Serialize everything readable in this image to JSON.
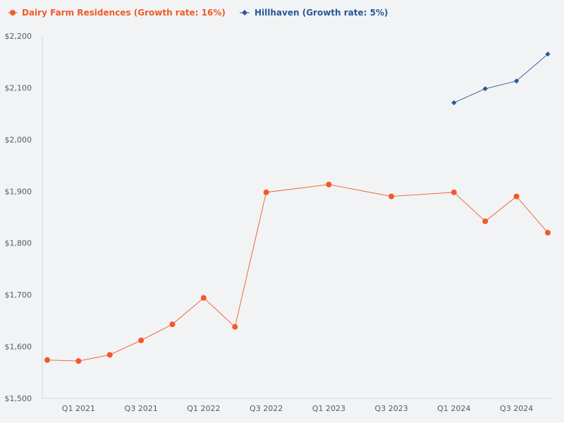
{
  "chart_data": {
    "type": "line",
    "title": "",
    "xlabel": "",
    "ylabel": "",
    "ylim": [
      1500,
      2200
    ],
    "y_ticks": [
      1500,
      1600,
      1700,
      1800,
      1900,
      2000,
      2100,
      2200
    ],
    "y_tick_labels": [
      "$1,500",
      "$1,600",
      "$1,700",
      "$1,800",
      "$1,900",
      "$2,000",
      "$2,100",
      "$2,200"
    ],
    "x_tick_labels": [
      "Q1 2021",
      "Q3 2021",
      "Q1 2022",
      "Q3 2022",
      "Q1 2023",
      "Q3 2023",
      "Q1 2024",
      "Q3 2024"
    ],
    "x_tick_index": [
      1,
      3,
      5,
      7,
      9,
      11,
      13,
      15
    ],
    "x_count": 17,
    "grid": false,
    "legend_position": "top-left",
    "series": [
      {
        "name": "Dairy Farm Residences (Growth rate: 16%)",
        "color": "#f05a28",
        "marker": "circle",
        "points": [
          {
            "x": 0,
            "y": 1574
          },
          {
            "x": 1,
            "y": 1572
          },
          {
            "x": 2,
            "y": 1584
          },
          {
            "x": 3,
            "y": 1612
          },
          {
            "x": 4,
            "y": 1643
          },
          {
            "x": 5,
            "y": 1694
          },
          {
            "x": 6,
            "y": 1638
          },
          {
            "x": 7,
            "y": 1898
          },
          {
            "x": 9,
            "y": 1913
          },
          {
            "x": 11,
            "y": 1890
          },
          {
            "x": 13,
            "y": 1898
          },
          {
            "x": 14,
            "y": 1842
          },
          {
            "x": 15,
            "y": 1890
          },
          {
            "x": 16,
            "y": 1820
          }
        ]
      },
      {
        "name": "Hillhaven (Growth rate: 5%)",
        "color": "#2a5699",
        "marker": "diamond",
        "points": [
          {
            "x": 13,
            "y": 2071
          },
          {
            "x": 14,
            "y": 2098
          },
          {
            "x": 15,
            "y": 2113
          },
          {
            "x": 16,
            "y": 2165
          }
        ]
      }
    ]
  }
}
